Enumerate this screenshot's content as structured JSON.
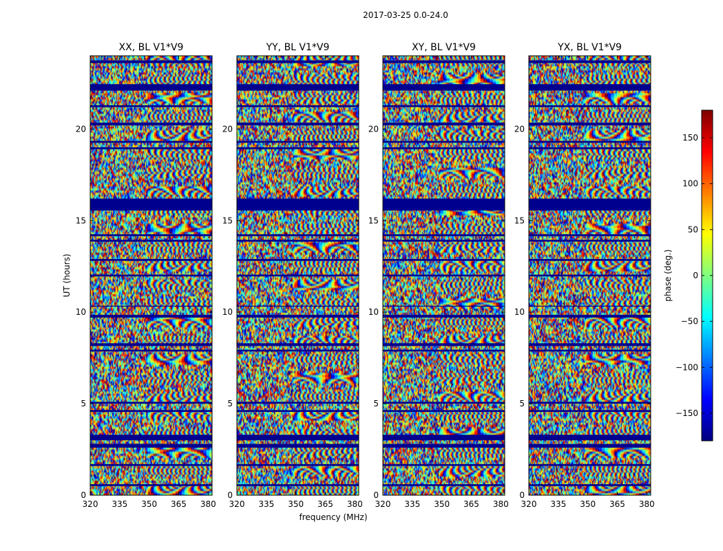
{
  "suptitle": "2017-03-25 0.0-24.0",
  "colors": {
    "colormap": [
      "#00007f",
      "#0000ff",
      "#007fff",
      "#00ffff",
      "#7fff7f",
      "#ffff00",
      "#ff7f00",
      "#ff0000",
      "#7f0000"
    ],
    "flagged": "#00008f",
    "axis": "#000000",
    "background": "#ffffff"
  },
  "chart_data": {
    "type": "heatmap",
    "title": "2017-03-25 0.0-24.0",
    "description_quantity": "phase",
    "xlabel": "frequency (MHz)",
    "ylabel": "UT (hours)",
    "xlim": [
      320,
      382
    ],
    "ylim": [
      0,
      24
    ],
    "xticks": [
      320,
      335,
      350,
      365,
      380
    ],
    "yticks": [
      0,
      5,
      10,
      15,
      20
    ],
    "panels": [
      {
        "title": "XX, BL V1*V9"
      },
      {
        "title": "YY, BL V1*V9"
      },
      {
        "title": "XY, BL V1*V9"
      },
      {
        "title": "YX, BL V1*V9"
      }
    ],
    "colorbar": {
      "label": "phase (deg.)",
      "range": [
        -180,
        180
      ],
      "ticks": [
        -150,
        -100,
        -50,
        0,
        50,
        100,
        150
      ],
      "colormap": "jet"
    },
    "flagged_bands_hours": [
      [
        23.6,
        23.75
      ],
      [
        22.1,
        22.45
      ],
      [
        21.2,
        21.3
      ],
      [
        20.2,
        20.35
      ],
      [
        19.25,
        19.35
      ],
      [
        18.9,
        19.0
      ],
      [
        15.55,
        16.2
      ],
      [
        14.15,
        14.25
      ],
      [
        13.85,
        13.95
      ],
      [
        12.8,
        12.9
      ],
      [
        11.95,
        12.05
      ],
      [
        10.3,
        10.35
      ],
      [
        9.7,
        9.85
      ],
      [
        8.15,
        8.3
      ],
      [
        7.85,
        7.95
      ],
      [
        5.0,
        5.1
      ],
      [
        4.55,
        4.65
      ],
      [
        3.0,
        3.3
      ],
      [
        2.6,
        2.8
      ],
      [
        1.6,
        1.7
      ],
      [
        0.5,
        0.6
      ]
    ]
  }
}
